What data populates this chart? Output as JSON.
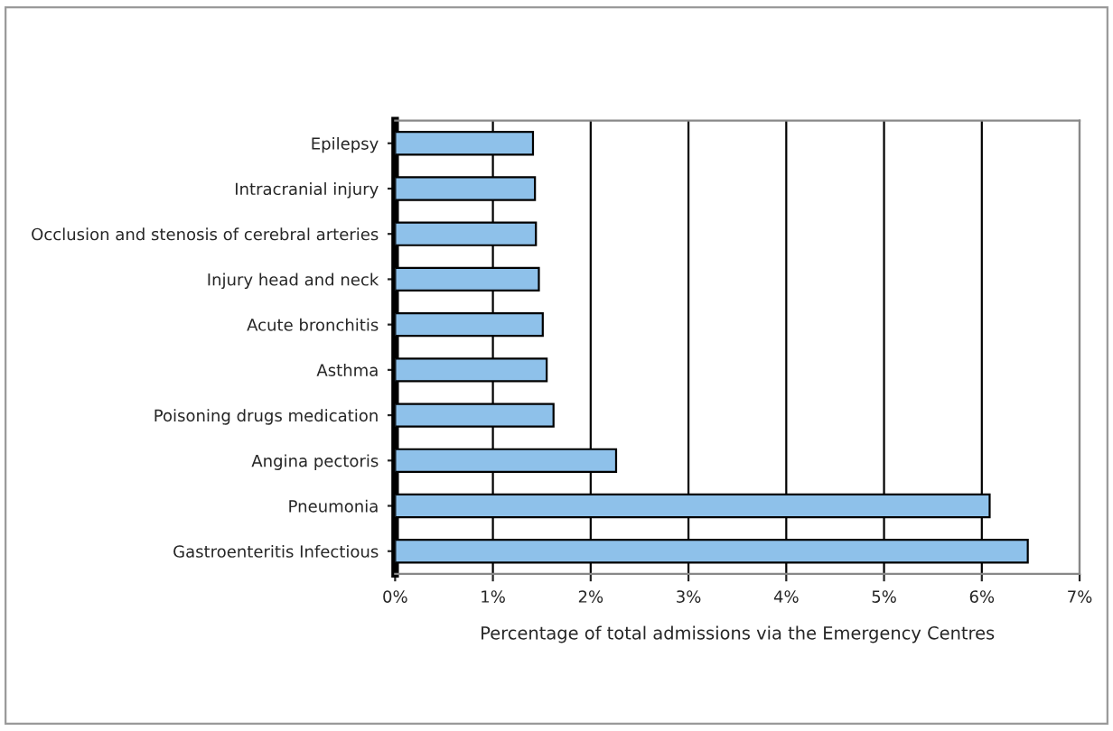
{
  "chart_data": {
    "type": "bar",
    "orientation": "horizontal",
    "xlabel": "Percentage of total admissions via the Emergency Centres",
    "categories": [
      "Epilepsy",
      "Intracranial injury",
      "Occlusion and stenosis of cerebral arteries",
      "Injury head and neck",
      "Acute bronchitis",
      "Asthma",
      "Poisoning drugs medication",
      "Angina pectoris",
      "Pneumonia",
      "Gastroenteritis Infectious"
    ],
    "values": [
      1.41,
      1.43,
      1.44,
      1.47,
      1.51,
      1.55,
      1.62,
      2.26,
      6.08,
      6.47
    ],
    "color": "#8ec1ea",
    "xlim": [
      0,
      7
    ],
    "xticks": [
      {
        "value": 0,
        "label": "0%"
      },
      {
        "value": 1,
        "label": "1%"
      },
      {
        "value": 2,
        "label": "2%"
      },
      {
        "value": 3,
        "label": "3%"
      },
      {
        "value": 4,
        "label": "4%"
      },
      {
        "value": 5,
        "label": "5%"
      },
      {
        "value": 6,
        "label": "6%"
      },
      {
        "value": 7,
        "label": "7%"
      }
    ],
    "grid": "x"
  }
}
